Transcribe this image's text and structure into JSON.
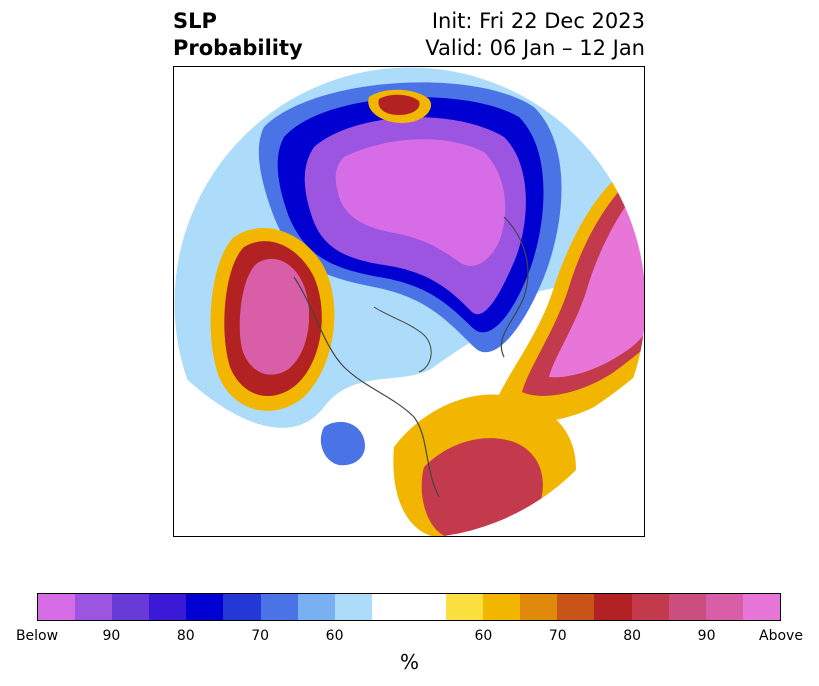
{
  "title": {
    "left_line1": "SLP",
    "left_line2": "Probability",
    "right_line1": "Init: Fri 22 Dec 2023",
    "right_line2": "Valid: 06 Jan – 12 Jan"
  },
  "colorbar": {
    "label": "%",
    "below_colors": [
      "#d66de6",
      "#9b55e0",
      "#6a3ad8",
      "#3a1ad6",
      "#0000d0",
      "#2438d6",
      "#4a74e6",
      "#78b0f2",
      "#acdcfa"
    ],
    "neutral_color": "#ffffff",
    "above_colors": [
      "#fce040",
      "#f2b600",
      "#e08a0c",
      "#c85418",
      "#b22222",
      "#c23a4c",
      "#cc4e80",
      "#d85ea8",
      "#e876d8"
    ],
    "tick_labels": [
      "Below",
      "90",
      "80",
      "70",
      "60",
      "60",
      "70",
      "80",
      "90",
      "Above"
    ]
  }
}
